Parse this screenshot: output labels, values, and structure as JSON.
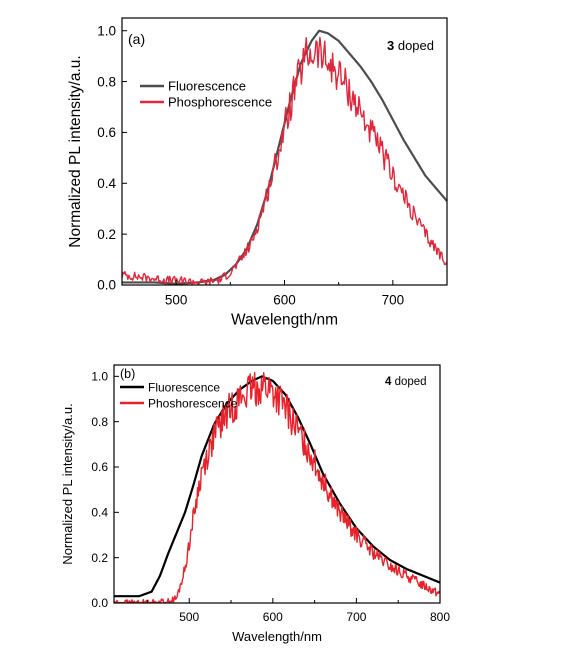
{
  "chart_data": [
    {
      "type": "line",
      "panel_label": "(a)",
      "doped_label": {
        "bold": "3",
        "text": " doped"
      },
      "xlabel": "Wavelength/nm",
      "ylabel": "Normalized PL intensity/a.u.",
      "xlim": [
        450,
        750
      ],
      "ylim": [
        0,
        1.05
      ],
      "xticks": [
        500,
        600,
        700
      ],
      "yticks": [
        0.0,
        0.2,
        0.4,
        0.6,
        0.8,
        1.0
      ],
      "ytick_labels": [
        "0.0",
        "0.2",
        "0.4",
        "0.6",
        "0.8",
        "1.0"
      ],
      "legend_position": "upper-left",
      "series": [
        {
          "name": "Fluorescence",
          "color": "#4d4d4d",
          "noisy": false,
          "points": [
            [
              450,
              0.01
            ],
            [
              480,
              0.01
            ],
            [
              500,
              0.005
            ],
            [
              520,
              0.01
            ],
            [
              535,
              0.02
            ],
            [
              545,
              0.04
            ],
            [
              555,
              0.08
            ],
            [
              565,
              0.14
            ],
            [
              575,
              0.24
            ],
            [
              585,
              0.38
            ],
            [
              595,
              0.55
            ],
            [
              605,
              0.72
            ],
            [
              615,
              0.87
            ],
            [
              625,
              0.96
            ],
            [
              632,
              1.0
            ],
            [
              640,
              0.99
            ],
            [
              650,
              0.96
            ],
            [
              660,
              0.91
            ],
            [
              670,
              0.86
            ],
            [
              680,
              0.8
            ],
            [
              690,
              0.73
            ],
            [
              700,
              0.65
            ],
            [
              710,
              0.57
            ],
            [
              720,
              0.5
            ],
            [
              730,
              0.43
            ],
            [
              740,
              0.38
            ],
            [
              750,
              0.33
            ]
          ]
        },
        {
          "name": "Phosphorescence",
          "color": "#e0283c",
          "noisy": true,
          "points": [
            [
              450,
              0.04
            ],
            [
              470,
              0.03
            ],
            [
              490,
              0.02
            ],
            [
              510,
              0.015
            ],
            [
              525,
              0.01
            ],
            [
              540,
              0.02
            ],
            [
              550,
              0.05
            ],
            [
              560,
              0.1
            ],
            [
              570,
              0.17
            ],
            [
              580,
              0.3
            ],
            [
              590,
              0.45
            ],
            [
              600,
              0.62
            ],
            [
              610,
              0.78
            ],
            [
              620,
              0.9
            ],
            [
              630,
              0.92
            ],
            [
              640,
              0.87
            ],
            [
              650,
              0.83
            ],
            [
              660,
              0.76
            ],
            [
              670,
              0.68
            ],
            [
              680,
              0.6
            ],
            [
              690,
              0.52
            ],
            [
              700,
              0.43
            ],
            [
              710,
              0.35
            ],
            [
              720,
              0.27
            ],
            [
              730,
              0.2
            ],
            [
              740,
              0.14
            ],
            [
              750,
              0.09
            ]
          ]
        }
      ]
    },
    {
      "type": "line",
      "panel_label": "(b)",
      "doped_label": {
        "bold": "4",
        "text": " doped"
      },
      "xlabel": "Wavelength/nm",
      "ylabel": "Normalized PL intensity/a.u.",
      "xlim": [
        410,
        800
      ],
      "ylim": [
        0,
        1.05
      ],
      "xticks": [
        500,
        600,
        700,
        800
      ],
      "yticks": [
        0.0,
        0.2,
        0.4,
        0.6,
        0.8,
        1.0
      ],
      "ytick_labels": [
        "0.0",
        "0.2",
        "0.4",
        "0.6",
        "0.8",
        "1.0"
      ],
      "legend_position": "upper-left",
      "series": [
        {
          "name": "Fluorescence",
          "color": "#000000",
          "noisy": false,
          "points": [
            [
              410,
              0.03
            ],
            [
              440,
              0.03
            ],
            [
              455,
              0.05
            ],
            [
              465,
              0.12
            ],
            [
              475,
              0.22
            ],
            [
              485,
              0.31
            ],
            [
              495,
              0.4
            ],
            [
              505,
              0.52
            ],
            [
              515,
              0.65
            ],
            [
              530,
              0.79
            ],
            [
              545,
              0.88
            ],
            [
              560,
              0.94
            ],
            [
              575,
              0.98
            ],
            [
              587,
              1.0
            ],
            [
              600,
              0.98
            ],
            [
              615,
              0.92
            ],
            [
              630,
              0.82
            ],
            [
              645,
              0.7
            ],
            [
              660,
              0.57
            ],
            [
              680,
              0.44
            ],
            [
              700,
              0.33
            ],
            [
              720,
              0.25
            ],
            [
              740,
              0.19
            ],
            [
              760,
              0.15
            ],
            [
              780,
              0.12
            ],
            [
              800,
              0.09
            ]
          ]
        },
        {
          "name": "Phoshorescence",
          "color": "#e8222a",
          "noisy": true,
          "points": [
            [
              410,
              0.0
            ],
            [
              450,
              0.0
            ],
            [
              475,
              0.005
            ],
            [
              485,
              0.02
            ],
            [
              495,
              0.15
            ],
            [
              505,
              0.38
            ],
            [
              515,
              0.58
            ],
            [
              530,
              0.74
            ],
            [
              545,
              0.84
            ],
            [
              560,
              0.9
            ],
            [
              575,
              0.94
            ],
            [
              590,
              0.96
            ],
            [
              600,
              0.93
            ],
            [
              615,
              0.86
            ],
            [
              630,
              0.76
            ],
            [
              645,
              0.66
            ],
            [
              660,
              0.54
            ],
            [
              680,
              0.4
            ],
            [
              700,
              0.3
            ],
            [
              720,
              0.22
            ],
            [
              740,
              0.16
            ],
            [
              760,
              0.12
            ],
            [
              780,
              0.08
            ],
            [
              800,
              0.04
            ]
          ]
        }
      ]
    }
  ]
}
